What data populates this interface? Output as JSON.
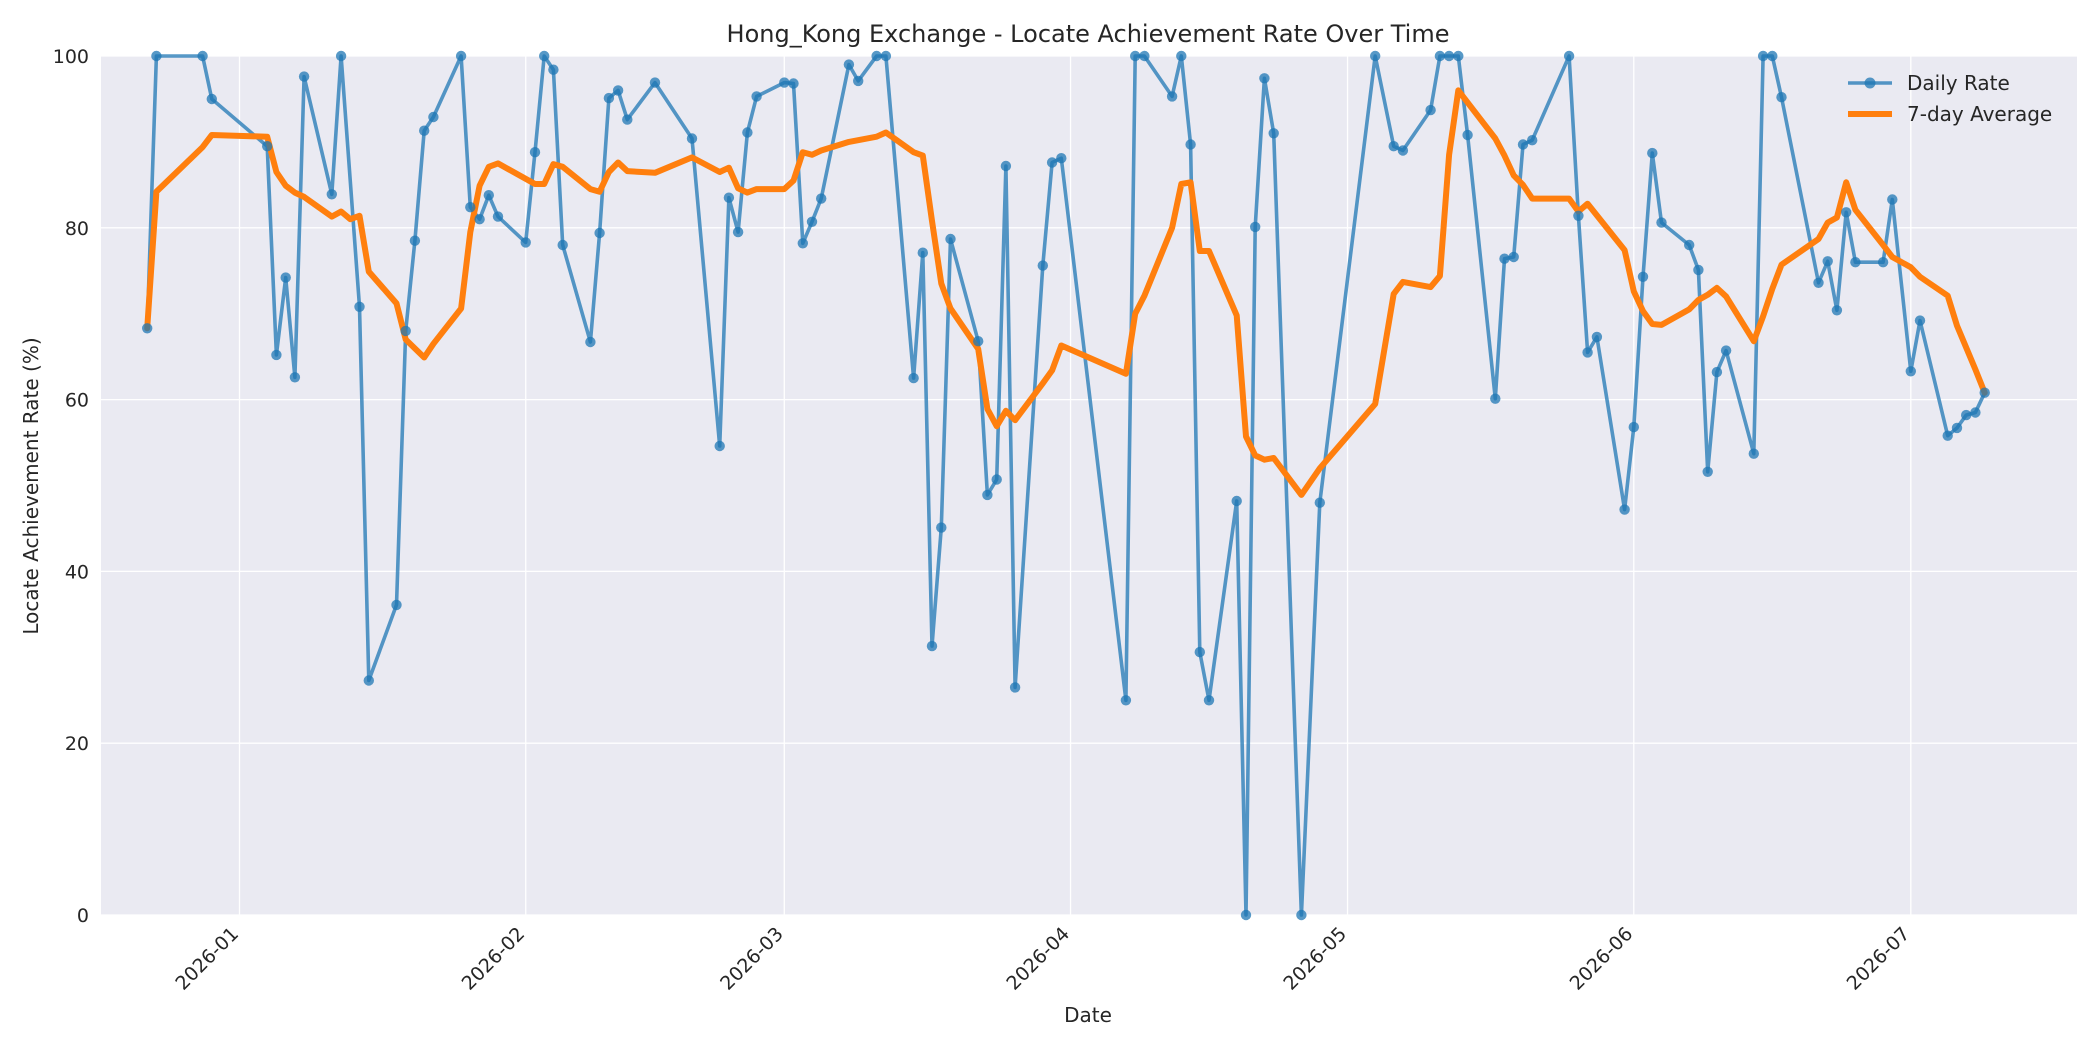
{
  "chart_data": {
    "type": "line",
    "title": "Hong_Kong Exchange - Locate Achievement Rate Over Time",
    "xlabel": "Date",
    "ylabel": "Locate Achievement Rate (%)",
    "x_ticks": [
      "2026-01",
      "2026-02",
      "2026-03",
      "2026-04",
      "2026-05",
      "2026-06",
      "2026-07"
    ],
    "y_ticks": [
      "0",
      "20",
      "40",
      "60",
      "80",
      "100"
    ],
    "xlim": [
      "2025-12-17",
      "2026-07-19"
    ],
    "ylim": [
      0,
      100
    ],
    "grid": true,
    "legend_position": "top-right",
    "series": [
      {
        "name": "Daily Rate",
        "color": "#1f77b4",
        "points": [
          [
            "2025-12-22",
            68.3
          ],
          [
            "2025-12-23",
            100
          ],
          [
            "2025-12-28",
            100
          ],
          [
            "2025-12-29",
            95.0
          ],
          [
            "2026-01-04",
            89.5
          ],
          [
            "2026-01-05",
            65.2
          ],
          [
            "2026-01-06",
            74.2
          ],
          [
            "2026-01-07",
            62.6
          ],
          [
            "2026-01-08",
            97.6
          ],
          [
            "2026-01-11",
            83.9
          ],
          [
            "2026-01-12",
            100
          ],
          [
            "2026-01-14",
            70.8
          ],
          [
            "2026-01-15",
            27.3
          ],
          [
            "2026-01-18",
            36.1
          ],
          [
            "2026-01-19",
            68.0
          ],
          [
            "2026-01-20",
            78.5
          ],
          [
            "2026-01-21",
            91.3
          ],
          [
            "2026-01-22",
            92.9
          ],
          [
            "2026-01-25",
            100
          ],
          [
            "2026-01-26",
            82.4
          ],
          [
            "2026-01-27",
            81.0
          ],
          [
            "2026-01-28",
            83.8
          ],
          [
            "2026-01-29",
            81.3
          ],
          [
            "2026-02-01",
            78.3
          ],
          [
            "2026-02-02",
            88.8
          ],
          [
            "2026-02-03",
            100
          ],
          [
            "2026-02-04",
            98.4
          ],
          [
            "2026-02-05",
            78.0
          ],
          [
            "2026-02-08",
            66.7
          ],
          [
            "2026-02-09",
            79.4
          ],
          [
            "2026-02-10",
            95.1
          ],
          [
            "2026-02-11",
            96.0
          ],
          [
            "2026-02-12",
            92.6
          ],
          [
            "2026-02-15",
            96.9
          ],
          [
            "2026-02-19",
            90.4
          ],
          [
            "2026-02-22",
            54.6
          ],
          [
            "2026-02-23",
            83.5
          ],
          [
            "2026-02-24",
            79.5
          ],
          [
            "2026-02-25",
            91.1
          ],
          [
            "2026-02-26",
            95.3
          ],
          [
            "2026-03-01",
            96.9
          ],
          [
            "2026-03-02",
            96.8
          ],
          [
            "2026-03-03",
            78.2
          ],
          [
            "2026-03-04",
            80.7
          ],
          [
            "2026-03-05",
            83.4
          ],
          [
            "2026-03-08",
            99.0
          ],
          [
            "2026-03-09",
            97.1
          ],
          [
            "2026-03-11",
            100
          ],
          [
            "2026-03-12",
            100
          ],
          [
            "2026-03-15",
            62.5
          ],
          [
            "2026-03-16",
            77.1
          ],
          [
            "2026-03-17",
            31.3
          ],
          [
            "2026-03-18",
            45.1
          ],
          [
            "2026-03-19",
            78.7
          ],
          [
            "2026-03-22",
            66.8
          ],
          [
            "2026-03-23",
            48.9
          ],
          [
            "2026-03-24",
            50.7
          ],
          [
            "2026-03-25",
            87.2
          ],
          [
            "2026-03-26",
            26.5
          ],
          [
            "2026-03-29",
            75.6
          ],
          [
            "2026-03-30",
            87.6
          ],
          [
            "2026-03-31",
            88.1
          ],
          [
            "2026-04-07",
            25.0
          ],
          [
            "2026-04-08",
            100
          ],
          [
            "2026-04-09",
            100
          ],
          [
            "2026-04-12",
            95.3
          ],
          [
            "2026-04-13",
            100
          ],
          [
            "2026-04-14",
            89.7
          ],
          [
            "2026-04-15",
            30.6
          ],
          [
            "2026-04-16",
            25.0
          ],
          [
            "2026-04-19",
            48.2
          ],
          [
            "2026-04-20",
            0
          ],
          [
            "2026-04-21",
            80.1
          ],
          [
            "2026-04-22",
            97.4
          ],
          [
            "2026-04-23",
            91.0
          ],
          [
            "2026-04-26",
            0
          ],
          [
            "2026-04-28",
            48.0
          ],
          [
            "2026-05-04",
            100
          ],
          [
            "2026-05-06",
            89.5
          ],
          [
            "2026-05-07",
            89.0
          ],
          [
            "2026-05-10",
            93.7
          ],
          [
            "2026-05-11",
            100
          ],
          [
            "2026-05-12",
            100
          ],
          [
            "2026-05-13",
            100
          ],
          [
            "2026-05-14",
            90.8
          ],
          [
            "2026-05-17",
            60.1
          ],
          [
            "2026-05-18",
            76.4
          ],
          [
            "2026-05-19",
            76.6
          ],
          [
            "2026-05-20",
            89.7
          ],
          [
            "2026-05-21",
            90.2
          ],
          [
            "2026-05-25",
            100
          ],
          [
            "2026-05-26",
            81.4
          ],
          [
            "2026-05-27",
            65.5
          ],
          [
            "2026-05-28",
            67.3
          ],
          [
            "2026-05-31",
            47.2
          ],
          [
            "2026-06-01",
            56.8
          ],
          [
            "2026-06-02",
            74.3
          ],
          [
            "2026-06-03",
            88.7
          ],
          [
            "2026-06-04",
            80.6
          ],
          [
            "2026-06-07",
            78.0
          ],
          [
            "2026-06-08",
            75.1
          ],
          [
            "2026-06-09",
            51.6
          ],
          [
            "2026-06-10",
            63.2
          ],
          [
            "2026-06-11",
            65.7
          ],
          [
            "2026-06-14",
            53.7
          ],
          [
            "2026-06-15",
            100
          ],
          [
            "2026-06-16",
            100
          ],
          [
            "2026-06-17",
            95.2
          ],
          [
            "2026-06-21",
            73.6
          ],
          [
            "2026-06-22",
            76.1
          ],
          [
            "2026-06-23",
            70.4
          ],
          [
            "2026-06-24",
            81.8
          ],
          [
            "2026-06-25",
            76.0
          ],
          [
            "2026-06-28",
            76.0
          ],
          [
            "2026-06-29",
            83.3
          ],
          [
            "2026-07-01",
            63.3
          ],
          [
            "2026-07-02",
            69.2
          ],
          [
            "2026-07-05",
            55.8
          ],
          [
            "2026-07-06",
            56.7
          ],
          [
            "2026-07-07",
            58.2
          ],
          [
            "2026-07-08",
            58.5
          ],
          [
            "2026-07-09",
            60.8
          ]
        ]
      },
      {
        "name": "7-day Average",
        "color": "#ff7f0e",
        "points": [
          [
            "2025-12-22",
            68.3
          ],
          [
            "2025-12-23",
            84.2
          ],
          [
            "2025-12-28",
            89.4
          ],
          [
            "2025-12-29",
            90.8
          ],
          [
            "2026-01-04",
            90.6
          ],
          [
            "2026-01-05",
            86.5
          ],
          [
            "2026-01-06",
            84.9
          ],
          [
            "2026-01-07",
            84.1
          ],
          [
            "2026-01-08",
            83.6
          ],
          [
            "2026-01-11",
            81.3
          ],
          [
            "2026-01-12",
            81.9
          ],
          [
            "2026-01-13",
            81.0
          ],
          [
            "2026-01-14",
            81.4
          ],
          [
            "2026-01-15",
            74.9
          ],
          [
            "2026-01-18",
            71.2
          ],
          [
            "2026-01-19",
            67.0
          ],
          [
            "2026-01-21",
            64.9
          ],
          [
            "2026-01-22",
            66.5
          ],
          [
            "2026-01-25",
            70.6
          ],
          [
            "2026-01-26",
            79.5
          ],
          [
            "2026-01-27",
            84.9
          ],
          [
            "2026-01-28",
            87.1
          ],
          [
            "2026-01-29",
            87.5
          ],
          [
            "2026-02-02",
            85.1
          ],
          [
            "2026-02-03",
            85.1
          ],
          [
            "2026-02-04",
            87.4
          ],
          [
            "2026-02-05",
            87.1
          ],
          [
            "2026-02-08",
            84.5
          ],
          [
            "2026-02-09",
            84.2
          ],
          [
            "2026-02-10",
            86.5
          ],
          [
            "2026-02-11",
            87.6
          ],
          [
            "2026-02-12",
            86.6
          ],
          [
            "2026-02-15",
            86.4
          ],
          [
            "2026-02-19",
            88.2
          ],
          [
            "2026-02-22",
            86.5
          ],
          [
            "2026-02-23",
            87.0
          ],
          [
            "2026-02-24",
            84.6
          ],
          [
            "2026-02-25",
            84.1
          ],
          [
            "2026-02-26",
            84.5
          ],
          [
            "2026-03-01",
            84.5
          ],
          [
            "2026-03-02",
            85.5
          ],
          [
            "2026-03-03",
            88.8
          ],
          [
            "2026-03-04",
            88.5
          ],
          [
            "2026-03-05",
            89.0
          ],
          [
            "2026-03-08",
            90.0
          ],
          [
            "2026-03-11",
            90.6
          ],
          [
            "2026-03-12",
            91.1
          ],
          [
            "2026-03-15",
            88.8
          ],
          [
            "2026-03-16",
            88.4
          ],
          [
            "2026-03-17",
            80.8
          ],
          [
            "2026-03-18",
            73.5
          ],
          [
            "2026-03-19",
            70.6
          ],
          [
            "2026-03-22",
            65.9
          ],
          [
            "2026-03-23",
            58.9
          ],
          [
            "2026-03-24",
            56.9
          ],
          [
            "2026-03-25",
            58.7
          ],
          [
            "2026-03-26",
            57.6
          ],
          [
            "2026-03-29",
            61.9
          ],
          [
            "2026-03-30",
            63.4
          ],
          [
            "2026-03-31",
            66.3
          ],
          [
            "2026-04-07",
            63.0
          ],
          [
            "2026-04-08",
            70.0
          ],
          [
            "2026-04-09",
            72.1
          ],
          [
            "2026-04-12",
            80.0
          ],
          [
            "2026-04-13",
            85.1
          ],
          [
            "2026-04-14",
            85.3
          ],
          [
            "2026-04-15",
            77.3
          ],
          [
            "2026-04-16",
            77.3
          ],
          [
            "2026-04-19",
            69.8
          ],
          [
            "2026-04-20",
            55.7
          ],
          [
            "2026-04-21",
            53.5
          ],
          [
            "2026-04-22",
            53.0
          ],
          [
            "2026-04-23",
            53.2
          ],
          [
            "2026-04-26",
            48.9
          ],
          [
            "2026-04-28",
            52.0
          ],
          [
            "2026-05-04",
            59.5
          ],
          [
            "2026-05-06",
            72.3
          ],
          [
            "2026-05-07",
            73.7
          ],
          [
            "2026-05-10",
            73.1
          ],
          [
            "2026-05-11",
            74.4
          ],
          [
            "2026-05-12",
            88.5
          ],
          [
            "2026-05-13",
            96.0
          ],
          [
            "2026-05-17",
            90.4
          ],
          [
            "2026-05-18",
            88.4
          ],
          [
            "2026-05-19",
            86.1
          ],
          [
            "2026-05-20",
            85.0
          ],
          [
            "2026-05-21",
            83.4
          ],
          [
            "2026-05-25",
            83.4
          ],
          [
            "2026-05-26",
            81.9
          ],
          [
            "2026-05-27",
            82.8
          ],
          [
            "2026-05-31",
            77.4
          ],
          [
            "2026-06-01",
            72.6
          ],
          [
            "2026-06-02",
            70.3
          ],
          [
            "2026-06-03",
            68.8
          ],
          [
            "2026-06-04",
            68.7
          ],
          [
            "2026-06-07",
            70.5
          ],
          [
            "2026-06-08",
            71.6
          ],
          [
            "2026-06-09",
            72.2
          ],
          [
            "2026-06-10",
            73.0
          ],
          [
            "2026-06-11",
            72.0
          ],
          [
            "2026-06-14",
            66.8
          ],
          [
            "2026-06-15",
            69.7
          ],
          [
            "2026-06-16",
            72.9
          ],
          [
            "2026-06-17",
            75.7
          ],
          [
            "2026-06-21",
            78.7
          ],
          [
            "2026-06-22",
            80.6
          ],
          [
            "2026-06-23",
            81.2
          ],
          [
            "2026-06-24",
            85.3
          ],
          [
            "2026-06-25",
            82.1
          ],
          [
            "2026-06-28",
            78.0
          ],
          [
            "2026-06-29",
            76.6
          ],
          [
            "2026-07-01",
            75.4
          ],
          [
            "2026-07-02",
            74.3
          ],
          [
            "2026-07-05",
            72.1
          ],
          [
            "2026-07-06",
            68.6
          ],
          [
            "2026-07-08",
            63.5
          ],
          [
            "2026-07-09",
            60.8
          ]
        ]
      }
    ]
  }
}
